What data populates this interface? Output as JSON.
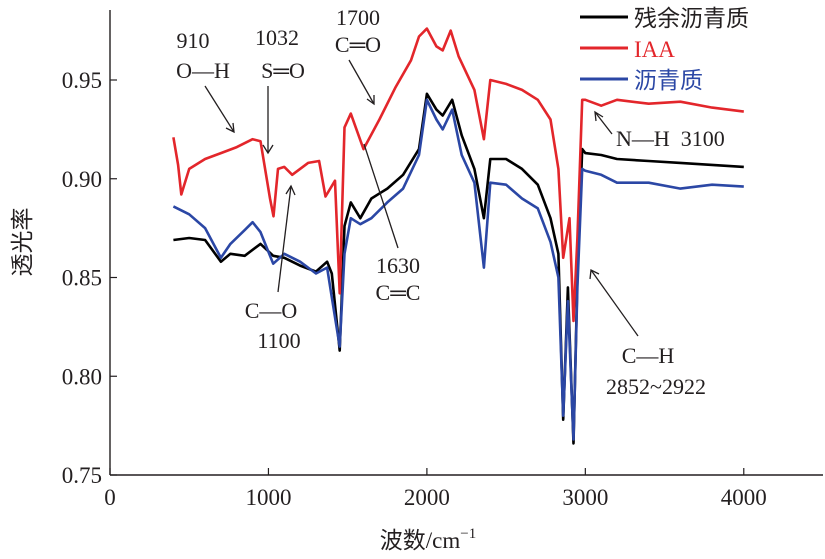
{
  "chart_data": {
    "type": "line",
    "xlabel": "波数/cm",
    "xlabel_sup": "−1",
    "ylabel": "透光率",
    "xlim": [
      0,
      4500
    ],
    "ylim": [
      0.75,
      0.98
    ],
    "xticks": [
      "0",
      "1000",
      "2000",
      "3000",
      "4000"
    ],
    "xtick_values": [
      0,
      1000,
      2000,
      3000,
      4000
    ],
    "yticks": [
      "0.75",
      "0.80",
      "0.85",
      "0.90",
      "0.95"
    ],
    "ytick_values": [
      0.75,
      0.8,
      0.85,
      0.9,
      0.95
    ],
    "legend_position": "top-right",
    "series": [
      {
        "name": "残余沥青质",
        "color": "#000000",
        "points": [
          [
            400,
            0.869
          ],
          [
            500,
            0.87
          ],
          [
            600,
            0.869
          ],
          [
            700,
            0.858
          ],
          [
            760,
            0.862
          ],
          [
            850,
            0.861
          ],
          [
            950,
            0.867
          ],
          [
            1030,
            0.861
          ],
          [
            1100,
            0.86
          ],
          [
            1200,
            0.856
          ],
          [
            1300,
            0.853
          ],
          [
            1370,
            0.858
          ],
          [
            1400,
            0.852
          ],
          [
            1450,
            0.813
          ],
          [
            1480,
            0.876
          ],
          [
            1520,
            0.888
          ],
          [
            1580,
            0.88
          ],
          [
            1650,
            0.89
          ],
          [
            1750,
            0.895
          ],
          [
            1850,
            0.902
          ],
          [
            1950,
            0.915
          ],
          [
            2000,
            0.943
          ],
          [
            2060,
            0.935
          ],
          [
            2100,
            0.932
          ],
          [
            2160,
            0.94
          ],
          [
            2220,
            0.922
          ],
          [
            2300,
            0.905
          ],
          [
            2360,
            0.88
          ],
          [
            2400,
            0.91
          ],
          [
            2500,
            0.91
          ],
          [
            2600,
            0.905
          ],
          [
            2700,
            0.897
          ],
          [
            2780,
            0.88
          ],
          [
            2830,
            0.862
          ],
          [
            2860,
            0.778
          ],
          [
            2890,
            0.845
          ],
          [
            2925,
            0.766
          ],
          [
            2950,
            0.85
          ],
          [
            2980,
            0.915
          ],
          [
            3000,
            0.913
          ],
          [
            3100,
            0.912
          ],
          [
            3200,
            0.91
          ],
          [
            3400,
            0.909
          ],
          [
            3600,
            0.908
          ],
          [
            3800,
            0.907
          ],
          [
            4000,
            0.906
          ]
        ]
      },
      {
        "name": "IAA",
        "color": "#e3262b",
        "points": [
          [
            400,
            0.921
          ],
          [
            430,
            0.907
          ],
          [
            450,
            0.892
          ],
          [
            500,
            0.905
          ],
          [
            600,
            0.91
          ],
          [
            700,
            0.913
          ],
          [
            800,
            0.916
          ],
          [
            900,
            0.92
          ],
          [
            950,
            0.919
          ],
          [
            1010,
            0.89
          ],
          [
            1032,
            0.881
          ],
          [
            1060,
            0.905
          ],
          [
            1100,
            0.906
          ],
          [
            1150,
            0.902
          ],
          [
            1250,
            0.908
          ],
          [
            1320,
            0.909
          ],
          [
            1360,
            0.891
          ],
          [
            1420,
            0.899
          ],
          [
            1450,
            0.842
          ],
          [
            1480,
            0.926
          ],
          [
            1520,
            0.933
          ],
          [
            1600,
            0.915
          ],
          [
            1700,
            0.93
          ],
          [
            1800,
            0.946
          ],
          [
            1900,
            0.96
          ],
          [
            1950,
            0.972
          ],
          [
            2000,
            0.976
          ],
          [
            2060,
            0.967
          ],
          [
            2100,
            0.965
          ],
          [
            2150,
            0.975
          ],
          [
            2200,
            0.962
          ],
          [
            2300,
            0.945
          ],
          [
            2360,
            0.92
          ],
          [
            2400,
            0.95
          ],
          [
            2500,
            0.948
          ],
          [
            2600,
            0.945
          ],
          [
            2700,
            0.94
          ],
          [
            2780,
            0.93
          ],
          [
            2830,
            0.905
          ],
          [
            2860,
            0.86
          ],
          [
            2900,
            0.88
          ],
          [
            2925,
            0.828
          ],
          [
            2950,
            0.87
          ],
          [
            2980,
            0.94
          ],
          [
            3000,
            0.94
          ],
          [
            3100,
            0.937
          ],
          [
            3200,
            0.94
          ],
          [
            3400,
            0.938
          ],
          [
            3600,
            0.939
          ],
          [
            3800,
            0.936
          ],
          [
            4000,
            0.934
          ]
        ]
      },
      {
        "name": "沥青质",
        "color": "#2b47a5",
        "points": [
          [
            400,
            0.886
          ],
          [
            500,
            0.882
          ],
          [
            600,
            0.875
          ],
          [
            700,
            0.86
          ],
          [
            760,
            0.867
          ],
          [
            850,
            0.874
          ],
          [
            900,
            0.878
          ],
          [
            950,
            0.873
          ],
          [
            1030,
            0.857
          ],
          [
            1100,
            0.862
          ],
          [
            1200,
            0.858
          ],
          [
            1300,
            0.852
          ],
          [
            1370,
            0.855
          ],
          [
            1400,
            0.84
          ],
          [
            1450,
            0.815
          ],
          [
            1480,
            0.862
          ],
          [
            1520,
            0.88
          ],
          [
            1580,
            0.877
          ],
          [
            1650,
            0.88
          ],
          [
            1750,
            0.888
          ],
          [
            1850,
            0.895
          ],
          [
            1950,
            0.912
          ],
          [
            2000,
            0.94
          ],
          [
            2060,
            0.93
          ],
          [
            2100,
            0.925
          ],
          [
            2160,
            0.935
          ],
          [
            2220,
            0.912
          ],
          [
            2300,
            0.898
          ],
          [
            2360,
            0.855
          ],
          [
            2400,
            0.898
          ],
          [
            2500,
            0.897
          ],
          [
            2600,
            0.89
          ],
          [
            2700,
            0.885
          ],
          [
            2780,
            0.868
          ],
          [
            2830,
            0.85
          ],
          [
            2860,
            0.78
          ],
          [
            2890,
            0.838
          ],
          [
            2925,
            0.768
          ],
          [
            2950,
            0.845
          ],
          [
            2980,
            0.905
          ],
          [
            3000,
            0.904
          ],
          [
            3100,
            0.902
          ],
          [
            3200,
            0.898
          ],
          [
            3400,
            0.898
          ],
          [
            3600,
            0.895
          ],
          [
            3800,
            0.897
          ],
          [
            4000,
            0.896
          ]
        ]
      }
    ],
    "annotations": [
      {
        "id": "oh",
        "lines": [
          "910",
          "O—H"
        ]
      },
      {
        "id": "so",
        "lines": [
          "1032",
          "S═O"
        ]
      },
      {
        "id": "co2",
        "lines": [
          "1700",
          "C═O"
        ]
      },
      {
        "id": "cc",
        "lines": [
          "1630",
          "C═C"
        ]
      },
      {
        "id": "co1",
        "lines": [
          "C—O",
          "1100"
        ]
      },
      {
        "id": "ch",
        "lines": [
          "C—H",
          "2852~2922"
        ]
      },
      {
        "id": "nh",
        "lines": [
          "N—H  3100"
        ]
      }
    ]
  }
}
